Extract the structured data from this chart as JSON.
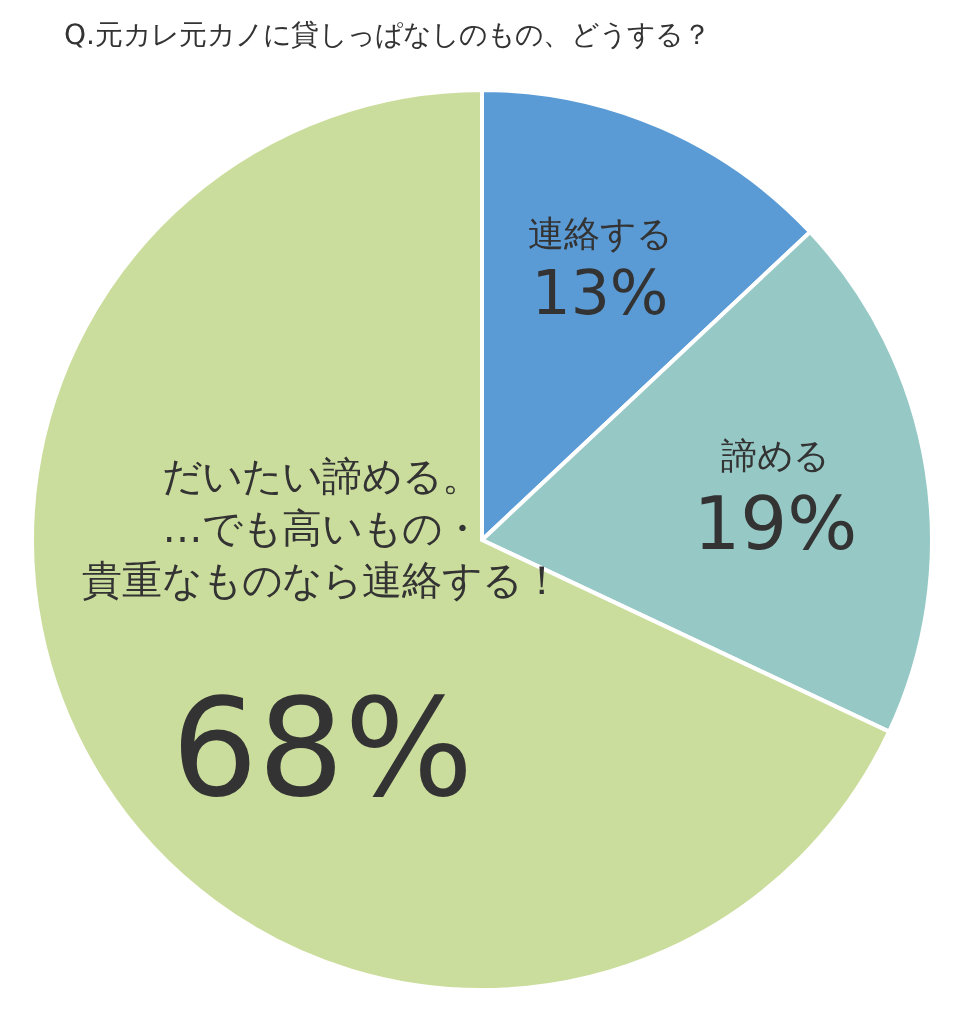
{
  "chart_data": {
    "type": "pie",
    "title": "Q.元カレ元カノに貸しっぱなしのもの、どうする？",
    "categories": [
      "連絡する",
      "諦める",
      "だいたい諦める。…でも高いもの・貴重なものなら連絡する！"
    ],
    "values": [
      13,
      19,
      68
    ],
    "colors": [
      "#5b9bd5",
      "#96c9c6",
      "#cbdd9c"
    ],
    "value_labels": [
      "13%",
      "19%",
      "68%"
    ]
  }
}
